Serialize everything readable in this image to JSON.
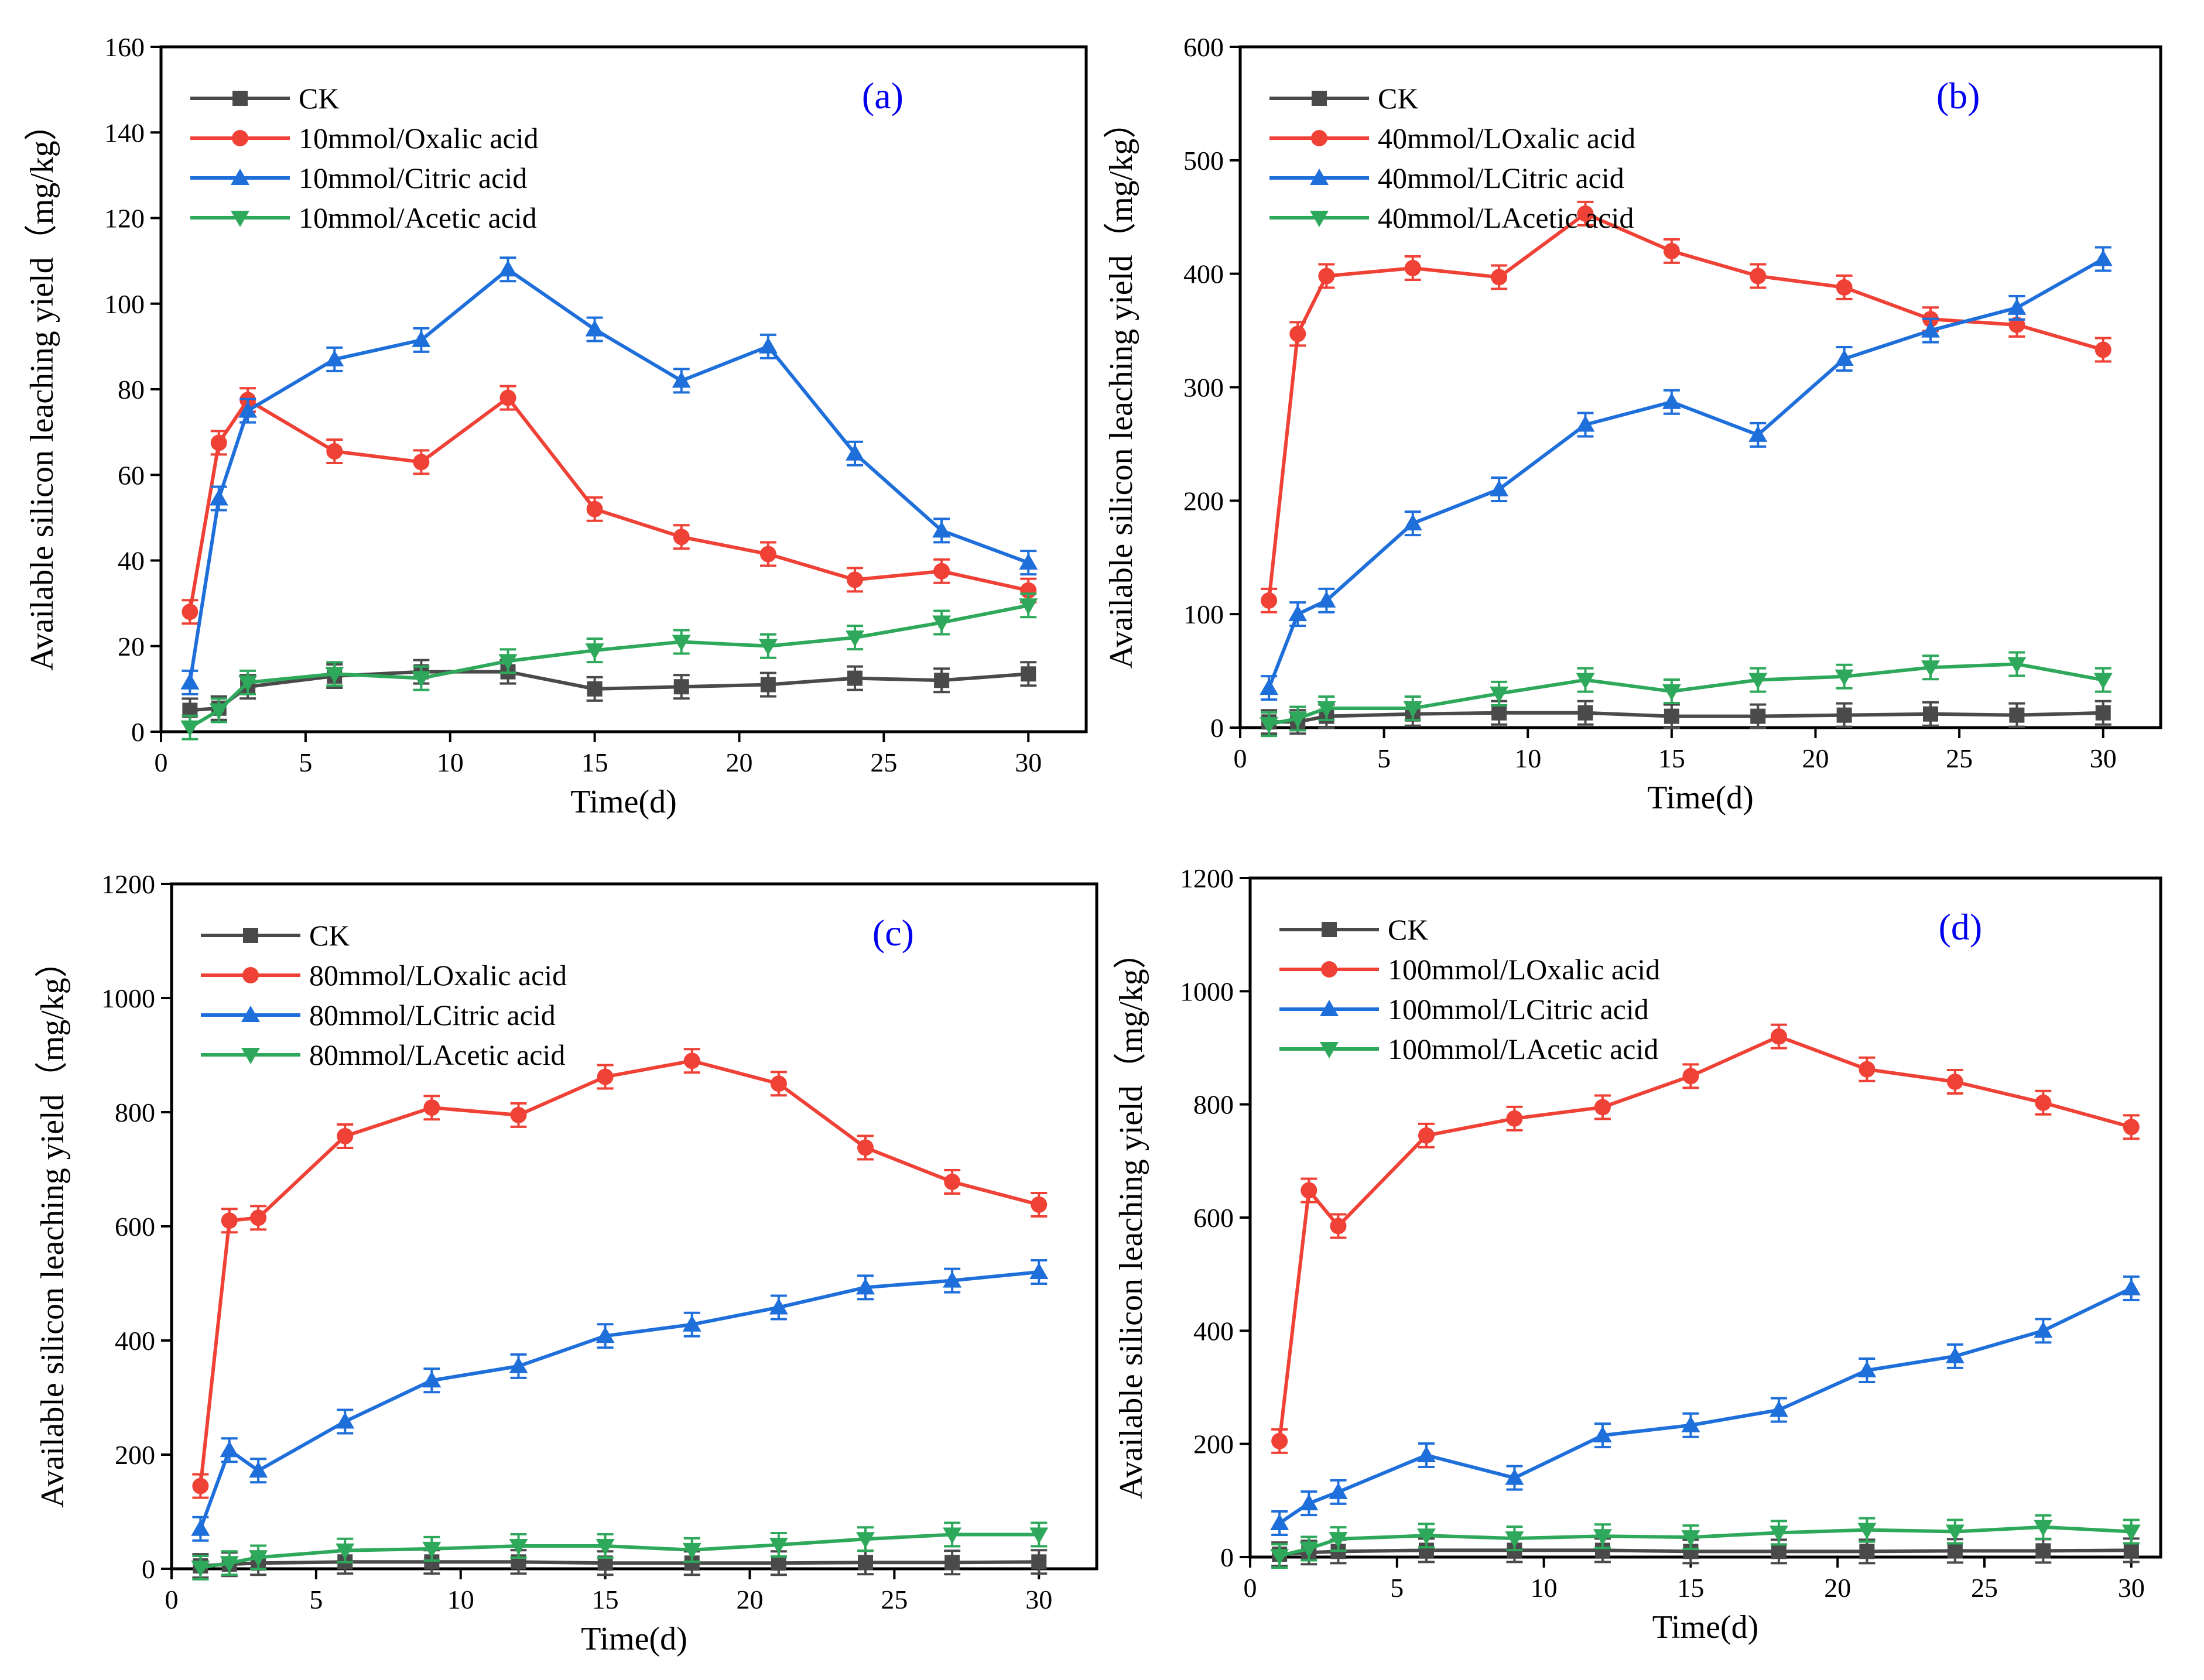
{
  "figure": {
    "x_values": [
      1,
      2,
      3,
      6,
      9,
      12,
      15,
      18,
      21,
      24,
      27,
      30
    ],
    "series_colors": {
      "CK": "#4a4a4a",
      "oxalic": "#ef4136",
      "citric": "#1f6fdb",
      "acetic": "#2ea85a"
    },
    "label_color": "#0000ee"
  },
  "chart_data": [
    {
      "type": "line",
      "panel": "a",
      "label": "(a)",
      "xlabel": "Time(d)",
      "ylabel": "Available  silicon leaching yield（mg/kg）",
      "xlim": [
        0,
        32
      ],
      "ylim": [
        0,
        160
      ],
      "xticks": [
        0,
        5,
        10,
        15,
        20,
        25,
        30
      ],
      "yticks": [
        0,
        20,
        40,
        60,
        80,
        100,
        120,
        140,
        160
      ],
      "legend_position": "top-left",
      "series": [
        {
          "name": "CK",
          "key": "CK",
          "marker": "square",
          "values": [
            5,
            5.5,
            10.5,
            13,
            14,
            14,
            10,
            10.5,
            11,
            12.5,
            12,
            13.5
          ]
        },
        {
          "name": "10mmol/Oxalic acid",
          "key": "oxalic",
          "marker": "circle",
          "values": [
            28,
            67.5,
            77.5,
            65.5,
            63,
            78,
            52,
            45.5,
            41.5,
            35.5,
            37.5,
            33
          ]
        },
        {
          "name": "10mmol/Citric acid",
          "key": "citric",
          "marker": "triangle-up",
          "values": [
            11.5,
            54.5,
            75,
            87,
            91.5,
            108,
            94,
            82,
            90,
            65,
            47,
            39.5
          ]
        },
        {
          "name": "10mmol/Acetic acid",
          "key": "acetic",
          "marker": "triangle-down",
          "values": [
            1,
            5,
            11.5,
            13.5,
            12.5,
            16.5,
            19,
            21,
            20,
            22,
            25.5,
            29.5
          ]
        }
      ]
    },
    {
      "type": "line",
      "panel": "b",
      "label": "(b)",
      "xlabel": "Time(d)",
      "ylabel": "Available  silicon leaching yield（mg/kg）",
      "xlim": [
        0,
        32
      ],
      "ylim": [
        0,
        600
      ],
      "xticks": [
        0,
        5,
        10,
        15,
        20,
        25,
        30
      ],
      "yticks": [
        0,
        100,
        200,
        300,
        400,
        500,
        600
      ],
      "legend_position": "top-left",
      "series": [
        {
          "name": "CK",
          "key": "CK",
          "marker": "square",
          "values": [
            5,
            5,
            10,
            12,
            13,
            13,
            10,
            10,
            11,
            12,
            11,
            13
          ]
        },
        {
          "name": "40mmol/LOxalic acid",
          "key": "oxalic",
          "marker": "circle",
          "values": [
            112,
            347,
            398,
            405,
            397,
            453,
            420,
            398,
            388,
            360,
            355,
            333
          ]
        },
        {
          "name": "40mmol/LCitric acid",
          "key": "citric",
          "marker": "triangle-up",
          "values": [
            35,
            100,
            112,
            180,
            210,
            267,
            287,
            258,
            325,
            350,
            370,
            413
          ]
        },
        {
          "name": "40mmol/LAcetic acid",
          "key": "acetic",
          "marker": "triangle-down",
          "values": [
            3,
            8,
            17,
            17,
            30,
            42,
            32,
            42,
            45,
            53,
            56,
            42
          ]
        }
      ]
    },
    {
      "type": "line",
      "panel": "c",
      "label": "(c)",
      "xlabel": "Time(d)",
      "ylabel": "Available  silicon leaching yield（mg/kg）",
      "xlim": [
        0,
        32
      ],
      "ylim": [
        0,
        1200
      ],
      "xticks": [
        0,
        5,
        10,
        15,
        20,
        25,
        30
      ],
      "yticks": [
        0,
        200,
        400,
        600,
        800,
        1000,
        1200
      ],
      "legend_position": "top-left",
      "series": [
        {
          "name": "CK",
          "key": "CK",
          "marker": "square",
          "values": [
            5,
            8,
            10,
            12,
            12,
            12,
            10,
            10,
            10,
            11,
            11,
            12
          ]
        },
        {
          "name": "80mmol/LOxalic acid",
          "key": "oxalic",
          "marker": "circle",
          "values": [
            145,
            610,
            615,
            758,
            808,
            795,
            862,
            890,
            850,
            738,
            678,
            638
          ]
        },
        {
          "name": "80mmol/LCitric acid",
          "key": "citric",
          "marker": "triangle-up",
          "values": [
            70,
            208,
            172,
            258,
            330,
            355,
            408,
            428,
            458,
            493,
            505,
            520
          ]
        },
        {
          "name": "80mmol/LAcetic acid",
          "key": "acetic",
          "marker": "triangle-down",
          "values": [
            2,
            10,
            20,
            32,
            35,
            40,
            40,
            33,
            42,
            52,
            60,
            60
          ]
        }
      ]
    },
    {
      "type": "line",
      "panel": "d",
      "label": "(d)",
      "xlabel": "Time(d)",
      "ylabel": "Available  silicon leaching yield（mg/kg）",
      "xlim": [
        0,
        31
      ],
      "ylim": [
        0,
        1200
      ],
      "xticks": [
        0,
        5,
        10,
        15,
        20,
        25,
        30
      ],
      "yticks": [
        0,
        200,
        400,
        600,
        800,
        1000,
        1200
      ],
      "legend_position": "top-left",
      "series": [
        {
          "name": "CK",
          "key": "CK",
          "marker": "square",
          "values": [
            5,
            8,
            10,
            12,
            12,
            12,
            10,
            10,
            10,
            11,
            11,
            12
          ]
        },
        {
          "name": "100mmol/LOxalic acid",
          "key": "oxalic",
          "marker": "circle",
          "values": [
            205,
            648,
            585,
            745,
            775,
            795,
            850,
            920,
            862,
            840,
            803,
            760
          ]
        },
        {
          "name": "100mmol/LCitric acid",
          "key": "citric",
          "marker": "triangle-up",
          "values": [
            60,
            95,
            115,
            180,
            140,
            215,
            233,
            260,
            330,
            355,
            400,
            475
          ]
        },
        {
          "name": "100mmol/LAcetic acid",
          "key": "acetic",
          "marker": "triangle-down",
          "values": [
            2,
            15,
            32,
            38,
            33,
            37,
            35,
            43,
            48,
            45,
            53,
            45
          ]
        }
      ]
    }
  ]
}
